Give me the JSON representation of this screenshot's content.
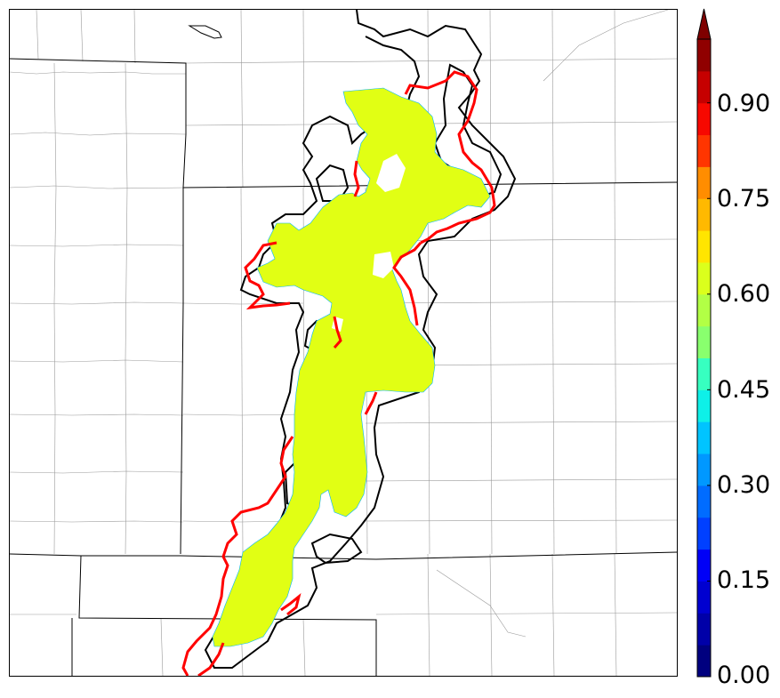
{
  "colorbar": {
    "tick_labels": [
      "0.00",
      "0.15",
      "0.30",
      "0.45",
      "0.60",
      "0.75",
      "0.90"
    ],
    "tick_values": [
      0.0,
      0.15,
      0.3,
      0.45,
      0.6,
      0.75,
      0.9
    ],
    "range": [
      0.0,
      1.0
    ],
    "levels": 20,
    "extend": "max",
    "colormap": [
      "#00007f",
      "#0000a8",
      "#0000d0",
      "#0000f7",
      "#0014ff",
      "#0040ff",
      "#006cff",
      "#0098ff",
      "#00c4ff",
      "#0ef0e8",
      "#37ffc0",
      "#60ff97",
      "#89ff6e",
      "#b2ff45",
      "#dbff1c",
      "#ffe500",
      "#ffb900",
      "#ff8d00",
      "#ff6100",
      "#ff3500",
      "#f70800",
      "#c60000",
      "#900000",
      "#7f0000"
    ]
  },
  "map": {
    "filled_region_color": "#e1ff14",
    "filled_region_value": 0.6,
    "contour_black_color": "#000000",
    "contour_red_color": "#ff0000"
  }
}
